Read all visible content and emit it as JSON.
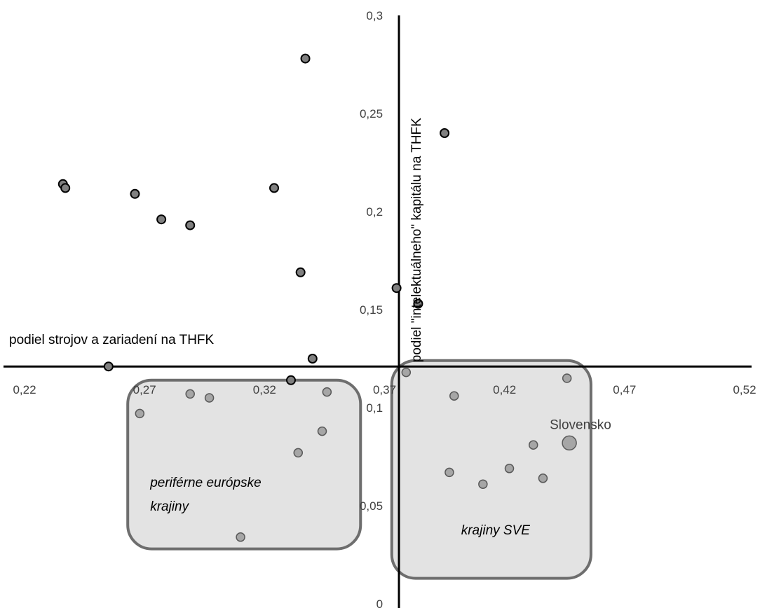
{
  "chart_data": {
    "type": "scatter",
    "xlabel": "podiel strojov a zariadení na THFK",
    "ylabel": "podiel \"intelektuálneho\" kapitálu na THFK",
    "xlim": [
      0.22,
      0.52
    ],
    "ylim": [
      0,
      0.3
    ],
    "x_ticks": [
      "0,22",
      "0,27",
      "0,32",
      "0,37",
      "0,42",
      "0,47",
      "0,52"
    ],
    "y_ticks": [
      "0",
      "0,05",
      "0,1",
      "0,15",
      "0,2",
      "0,25",
      "0,3"
    ],
    "x_tick_values": [
      0.22,
      0.27,
      0.32,
      0.37,
      0.42,
      0.47,
      0.52
    ],
    "y_tick_values": [
      0,
      0.05,
      0.1,
      0.15,
      0.2,
      0.25,
      0.3
    ],
    "axes_cross": {
      "x": 0.376,
      "y": 0.121
    },
    "grid": false,
    "legend": "none",
    "colors": {
      "point_fill": "#808080",
      "point_fill_light": "#a6a6a6",
      "point_stroke": "#000000",
      "point_stroke_light": "#595959",
      "region_fill": "#e3e3e3",
      "region_stroke": "#6e6e6e"
    },
    "points": [
      {
        "x": 0.236,
        "y": 0.214
      },
      {
        "x": 0.237,
        "y": 0.212
      },
      {
        "x": 0.255,
        "y": 0.121
      },
      {
        "x": 0.266,
        "y": 0.209
      },
      {
        "x": 0.277,
        "y": 0.196
      },
      {
        "x": 0.289,
        "y": 0.193
      },
      {
        "x": 0.324,
        "y": 0.212
      },
      {
        "x": 0.335,
        "y": 0.169
      },
      {
        "x": 0.337,
        "y": 0.278
      },
      {
        "x": 0.331,
        "y": 0.114
      },
      {
        "x": 0.34,
        "y": 0.125
      },
      {
        "x": 0.375,
        "y": 0.161
      },
      {
        "x": 0.384,
        "y": 0.153
      },
      {
        "x": 0.395,
        "y": 0.24
      },
      {
        "x": 0.268,
        "y": 0.097,
        "shaded": true
      },
      {
        "x": 0.289,
        "y": 0.107,
        "shaded": true
      },
      {
        "x": 0.297,
        "y": 0.105,
        "shaded": true
      },
      {
        "x": 0.31,
        "y": 0.034,
        "shaded": true
      },
      {
        "x": 0.334,
        "y": 0.077,
        "shaded": true
      },
      {
        "x": 0.344,
        "y": 0.088,
        "shaded": true
      },
      {
        "x": 0.346,
        "y": 0.108,
        "shaded": true
      },
      {
        "x": 0.379,
        "y": 0.118,
        "shaded": true
      },
      {
        "x": 0.399,
        "y": 0.106,
        "shaded": true
      },
      {
        "x": 0.397,
        "y": 0.067,
        "shaded": true
      },
      {
        "x": 0.411,
        "y": 0.061,
        "shaded": true
      },
      {
        "x": 0.422,
        "y": 0.069,
        "shaded": true
      },
      {
        "x": 0.432,
        "y": 0.081,
        "shaded": true
      },
      {
        "x": 0.436,
        "y": 0.064,
        "shaded": true
      },
      {
        "x": 0.446,
        "y": 0.115,
        "shaded": true
      },
      {
        "x": 0.447,
        "y": 0.082,
        "shaded": true,
        "label": "Slovensko",
        "large": true
      }
    ],
    "regions": [
      {
        "label": "periférne európske\nkrajiny",
        "x_range": [
          0.263,
          0.36
        ],
        "y_range": [
          0.028,
          0.114
        ]
      },
      {
        "label": "krajiny SVE",
        "x_range": [
          0.373,
          0.456
        ],
        "y_range": [
          0.013,
          0.124
        ]
      }
    ]
  }
}
